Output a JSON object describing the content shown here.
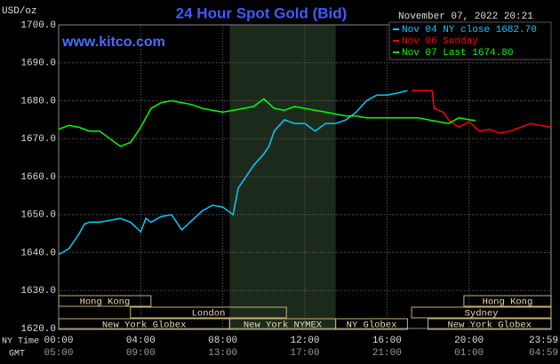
{
  "chart_data": {
    "type": "line",
    "title": "24 Hour Spot Gold (Bid)",
    "source": "www.kitco.com",
    "timestamp": "November 07, 2022 20:21",
    "ylabel": "USD/oz",
    "xlabel": "NY Time",
    "x2label": "GMT",
    "xlim": [
      0,
      24
    ],
    "ylim": [
      1620,
      1700
    ],
    "yticks": [
      {
        "value": 1620,
        "label": "1620.0"
      },
      {
        "value": 1630,
        "label": "1630.0"
      },
      {
        "value": 1640,
        "label": "1640.0"
      },
      {
        "value": 1650,
        "label": "1650.0"
      },
      {
        "value": 1660,
        "label": "1660.0"
      },
      {
        "value": 1670,
        "label": "1670.0"
      },
      {
        "value": 1680,
        "label": "1680.0"
      },
      {
        "value": 1690,
        "label": "1690.0"
      },
      {
        "value": 1700,
        "label": "1700.0"
      }
    ],
    "xticks": [
      {
        "value": 0,
        "label": "00:00"
      },
      {
        "value": 4,
        "label": "04:00"
      },
      {
        "value": 8,
        "label": "08:00"
      },
      {
        "value": 12,
        "label": "12:00"
      },
      {
        "value": 16,
        "label": "16:00"
      },
      {
        "value": 20,
        "label": "20:00"
      },
      {
        "value": 23.983,
        "label": "23:59"
      }
    ],
    "x2ticks": [
      {
        "value": 0,
        "label": "05:00"
      },
      {
        "value": 4,
        "label": "09:00"
      },
      {
        "value": 8,
        "label": "13:00"
      },
      {
        "value": 12,
        "label": "17:00"
      },
      {
        "value": 16,
        "label": "21:00"
      },
      {
        "value": 20,
        "label": "01:00"
      },
      {
        "value": 23.983,
        "label": "04:59"
      }
    ],
    "grid": true,
    "series": [
      {
        "name": "Nov 04 NY close 1682.70",
        "color": "#00ccff",
        "x": [
          0,
          0.5,
          1,
          1.25,
          1.5,
          2,
          2.5,
          3,
          3.5,
          4,
          4.25,
          4.5,
          5,
          5.5,
          6,
          6.5,
          7,
          7.5,
          8,
          8.5,
          8.75,
          9,
          9.5,
          10,
          10.25,
          10.5,
          11,
          11.5,
          12,
          12.5,
          13,
          13.5,
          14,
          14.5,
          15,
          15.5,
          16,
          16.5,
          17
        ],
        "values": [
          1639.5,
          1641,
          1645,
          1647.5,
          1648,
          1648,
          1648.5,
          1649,
          1648,
          1645.5,
          1649,
          1648,
          1649.5,
          1650,
          1646,
          1648.5,
          1651,
          1652.5,
          1652,
          1650,
          1657,
          1659,
          1663,
          1666,
          1668,
          1672,
          1675,
          1674,
          1674,
          1672,
          1674,
          1674,
          1675,
          1677,
          1680,
          1681.5,
          1681.5,
          1682,
          1682.7
        ]
      },
      {
        "name": "Nov 06 Sunday",
        "color": "#ff0000",
        "x": [
          17.2,
          18.2,
          18.3,
          18.75,
          19,
          19.5,
          20,
          20.5,
          21,
          21.5,
          22,
          22.5,
          23,
          23.5,
          24
        ],
        "values": [
          1682.7,
          1682.7,
          1678,
          1677,
          1675,
          1673,
          1674.5,
          1672,
          1672.5,
          1671.5,
          1672,
          1673,
          1674,
          1673.5,
          1673
        ]
      },
      {
        "name": "Nov 07 Last 1674.80",
        "color": "#00ff00",
        "x": [
          0,
          0.5,
          1,
          1.5,
          2,
          2.5,
          3,
          3.5,
          4,
          4.5,
          5,
          5.5,
          6,
          6.5,
          7,
          7.5,
          8,
          8.5,
          9,
          9.5,
          10,
          10.5,
          11,
          11.5,
          12,
          12.5,
          13,
          13.5,
          14,
          14.5,
          15,
          15.5,
          16,
          16.5,
          17,
          17.5,
          18,
          18.5,
          19,
          19.5,
          20,
          20.3
        ],
        "values": [
          1672.5,
          1673.5,
          1673,
          1672,
          1672,
          1670,
          1668,
          1669,
          1673,
          1678,
          1679.5,
          1680,
          1679.5,
          1679,
          1678,
          1677.5,
          1677,
          1677.5,
          1678,
          1678.5,
          1680.5,
          1678,
          1677.5,
          1678.5,
          1678,
          1677.5,
          1677,
          1676.5,
          1676,
          1676,
          1675.5,
          1675.5,
          1675.5,
          1675.5,
          1675.5,
          1675.5,
          1675,
          1674.5,
          1674,
          1675.5,
          1675,
          1674.8
        ]
      }
    ],
    "sessions": [
      [
        {
          "label": "Hong Kong",
          "start": 0,
          "end": 4.5
        },
        {
          "label": "Hong Kong",
          "start": 19.75,
          "end": 24
        }
      ],
      [
        {
          "label": "London",
          "start": 3.5,
          "end": 11.1
        },
        {
          "label": "Sydney",
          "start": 17.2,
          "end": 24
        }
      ],
      [
        {
          "label": "New York Globex",
          "start": 0,
          "end": 8.33
        },
        {
          "label": "New York NYMEX",
          "start": 8.33,
          "end": 13.5,
          "highlight": true
        },
        {
          "label": "NY Globex",
          "start": 13.5,
          "end": 17
        },
        {
          "label": "New York Globex",
          "start": 18,
          "end": 24
        }
      ]
    ]
  }
}
